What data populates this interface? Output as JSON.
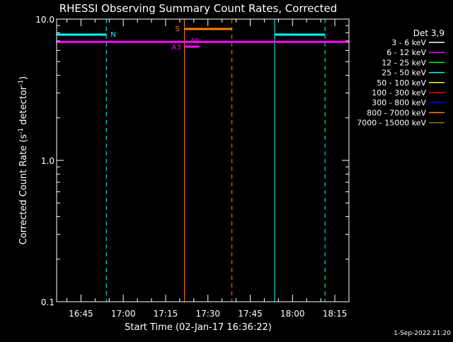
{
  "colors": {
    "background": "#000000",
    "axes": "#ffffff",
    "cyan": "#00ffff",
    "magenta": "#ff00ff",
    "orange": "#ff8000"
  },
  "chart_data": {
    "type": "line",
    "title": "RHESSI Observing Summary Count Rates, Corrected",
    "xlabel": "Start Time (02-Jan-17 16:36:22)",
    "ylabel_main": "Corrected Count Rate (s",
    "ylabel_sup1": "-1",
    "ylabel_mid": " detector",
    "ylabel_sup2": "-1",
    "ylabel_end": ")",
    "x_scale": "time",
    "x_range": [
      "16:36:22",
      "18:20:00"
    ],
    "y_scale": "log",
    "ylim": [
      0.1,
      10.0
    ],
    "x_ticks": [
      "16:45",
      "17:00",
      "17:15",
      "17:30",
      "17:45",
      "18:00",
      "18:15"
    ],
    "y_ticks": [
      "0.1",
      "1.0",
      "10.0"
    ],
    "y_tick_values": [
      0.1,
      1.0,
      10.0
    ],
    "legend_position": "right",
    "legend_title": "Det 3,9",
    "legend": [
      {
        "label": "3 - 6 keV",
        "color": "#ffffff"
      },
      {
        "label": "6 - 12 keV",
        "color": "#ff00ff"
      },
      {
        "label": "12 - 25 keV",
        "color": "#00ff00"
      },
      {
        "label": "25 - 50 keV",
        "color": "#00ffff"
      },
      {
        "label": "50 - 100 keV",
        "color": "#ffff00"
      },
      {
        "label": "100 - 300 keV",
        "color": "#ff0000"
      },
      {
        "label": "300 - 800 keV",
        "color": "#0000ff"
      },
      {
        "label": "800 - 7000 keV",
        "color": "#ff8000"
      },
      {
        "label": "7000 - 15000 keV",
        "color": "#808000"
      }
    ],
    "series": [
      {
        "name": "6 - 12 keV",
        "color": "#ff00ff",
        "x": [
          "16:36:22",
          "18:20:00"
        ],
        "y": [
          6.9,
          6.9
        ]
      }
    ],
    "night_intervals": [
      {
        "label": "N",
        "start": "16:36:22",
        "end": "16:54:00"
      },
      {
        "label": "",
        "start": "17:53:40",
        "end": "18:11:30"
      }
    ],
    "saa_intervals": [
      {
        "label": "S",
        "start": "17:21:40",
        "end": "17:38:30"
      }
    ],
    "attenuator_marks": [
      {
        "label": "A0",
        "start": "17:21:40",
        "end": "17:27:00"
      },
      {
        "label": "A3",
        "start": "17:21:40",
        "end": "17:27:00"
      }
    ],
    "timestamp": "1-Sep-2022 21:20"
  }
}
